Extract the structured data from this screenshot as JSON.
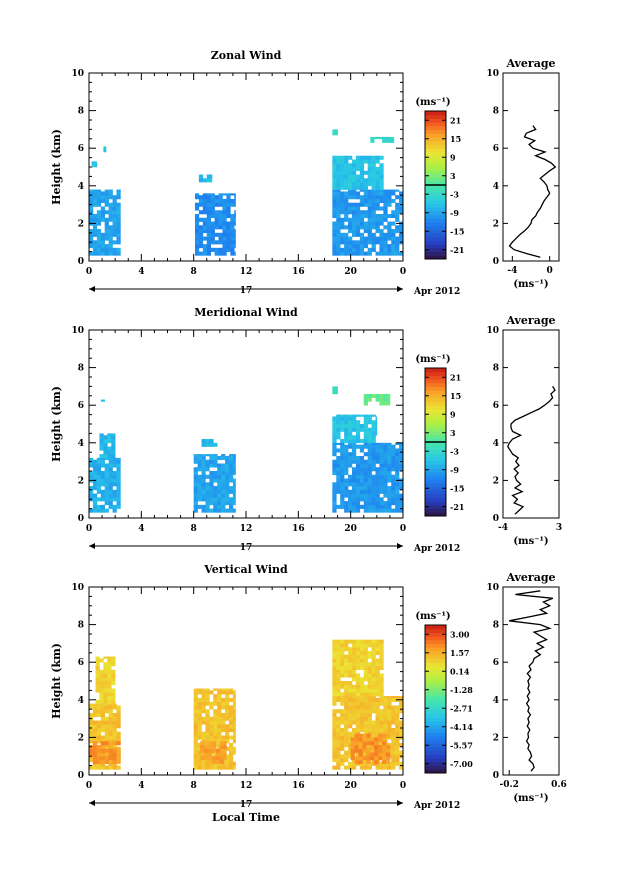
{
  "chart_data": [
    {
      "type": "heatmap",
      "title": "Zonal Wind",
      "ylabel": "Height (km)",
      "xlim": [
        0,
        24
      ],
      "ylim": [
        0,
        10
      ],
      "xticks": [
        "0",
        "4",
        "8",
        "12",
        "16",
        "20",
        "0"
      ],
      "yticks": [
        "0",
        "2",
        "4",
        "6",
        "8",
        "10"
      ],
      "day_label": "17",
      "date_label": "Apr 2012",
      "unit_label": "(ms⁻¹)",
      "colorbar": {
        "ticks": [
          "21",
          "15",
          "9",
          "3",
          "-3",
          "-9",
          "-15",
          "-21"
        ],
        "min": -24,
        "max": 24,
        "line_value": 0
      },
      "blocks": [
        {
          "x0": 0,
          "x1": 2.4,
          "y0": 0.3,
          "y1": 3.8,
          "value": -9
        },
        {
          "x0": 1.1,
          "x1": 1.3,
          "y0": 5.8,
          "y1": 6.1,
          "value": -6
        },
        {
          "x0": 0.2,
          "x1": 0.6,
          "y0": 5.0,
          "y1": 5.3,
          "value": -6
        },
        {
          "x0": 8.1,
          "x1": 11.2,
          "y0": 0.3,
          "y1": 3.6,
          "value": -11
        },
        {
          "x0": 8.4,
          "x1": 9.4,
          "y0": 4.2,
          "y1": 4.6,
          "value": -7
        },
        {
          "x0": 18.6,
          "x1": 24,
          "y0": 0.3,
          "y1": 3.8,
          "value": -10
        },
        {
          "x0": 18.6,
          "x1": 22.5,
          "y0": 3.8,
          "y1": 5.6,
          "value": -6
        },
        {
          "x0": 21.5,
          "x1": 23.3,
          "y0": 6.3,
          "y1": 6.6,
          "value": -3
        },
        {
          "x0": 18.6,
          "x1": 19.0,
          "y0": 6.7,
          "y1": 7.0,
          "value": -3
        }
      ],
      "average": {
        "title": "Average",
        "xlim": [
          -5,
          1
        ],
        "xticks": [
          "-4",
          "0"
        ],
        "xtick_values": [
          -4,
          0
        ],
        "xlabel": "(ms⁻¹)",
        "y": [
          0.2,
          0.4,
          0.6,
          0.8,
          1.0,
          1.2,
          1.4,
          1.6,
          1.8,
          2.0,
          2.2,
          2.4,
          2.6,
          2.8,
          3.0,
          3.2,
          3.4,
          3.6,
          3.8,
          4.0,
          4.2,
          4.4,
          4.6,
          4.8,
          5.0,
          5.2,
          5.4,
          5.6,
          5.8,
          6.0,
          6.2,
          6.4,
          6.6,
          6.8,
          7.0,
          7.2
        ],
        "x": [
          -1.0,
          -2.5,
          -3.8,
          -4.3,
          -4.0,
          -3.6,
          -3.2,
          -2.7,
          -2.3,
          -2.0,
          -1.9,
          -1.5,
          -1.3,
          -1.0,
          -0.8,
          -0.6,
          -0.3,
          0.0,
          -0.2,
          -0.3,
          -0.6,
          -1.0,
          -0.5,
          0.0,
          0.6,
          0.2,
          -0.5,
          -1.5,
          -0.5,
          -1.8,
          -2.2,
          -1.6,
          -2.7,
          -2.5,
          -1.5,
          -1.8
        ]
      }
    },
    {
      "type": "heatmap",
      "title": "Meridional Wind",
      "ylabel": "Height (km)",
      "xlim": [
        0,
        24
      ],
      "ylim": [
        0,
        10
      ],
      "xticks": [
        "0",
        "4",
        "8",
        "12",
        "16",
        "20",
        "0"
      ],
      "yticks": [
        "0",
        "2",
        "4",
        "6",
        "8",
        "10"
      ],
      "day_label": "17",
      "date_label": "Apr 2012",
      "unit_label": "(ms⁻¹)",
      "colorbar": {
        "ticks": [
          "21",
          "15",
          "9",
          "3",
          "-3",
          "-9",
          "-15",
          "-21"
        ],
        "min": -24,
        "max": 24,
        "line_value": 0
      },
      "blocks": [
        {
          "x0": 0,
          "x1": 2.4,
          "y0": 0.3,
          "y1": 3.2,
          "value": -8
        },
        {
          "x0": 0.8,
          "x1": 2.0,
          "y0": 3.2,
          "y1": 4.5,
          "value": -7
        },
        {
          "x0": 0.9,
          "x1": 1.2,
          "y0": 6.0,
          "y1": 6.3,
          "value": -6
        },
        {
          "x0": 8.0,
          "x1": 11.2,
          "y0": 0.3,
          "y1": 3.4,
          "value": -9
        },
        {
          "x0": 8.6,
          "x1": 9.8,
          "y0": 3.8,
          "y1": 4.2,
          "value": -7
        },
        {
          "x0": 18.6,
          "x1": 24,
          "y0": 0.3,
          "y1": 4.0,
          "value": -10
        },
        {
          "x0": 18.6,
          "x1": 22.0,
          "y0": 4.0,
          "y1": 5.5,
          "value": -6
        },
        {
          "x0": 21.0,
          "x1": 23.0,
          "y0": 6.0,
          "y1": 6.6,
          "value": 2
        },
        {
          "x0": 18.6,
          "x1": 19.0,
          "y0": 6.6,
          "y1": 7.0,
          "value": -3
        }
      ],
      "average": {
        "title": "Average",
        "xlim": [
          -4,
          3
        ],
        "xticks": [
          "-4",
          "3"
        ],
        "xtick_values": [
          -4,
          3
        ],
        "xlabel": "(ms⁻¹)",
        "y": [
          0.2,
          0.4,
          0.6,
          0.8,
          1.0,
          1.2,
          1.4,
          1.6,
          1.8,
          2.0,
          2.2,
          2.4,
          2.6,
          2.8,
          3.0,
          3.2,
          3.4,
          3.6,
          3.8,
          4.0,
          4.2,
          4.4,
          4.6,
          4.8,
          5.0,
          5.2,
          5.4,
          5.6,
          5.8,
          6.0,
          6.2,
          6.4,
          6.6,
          6.8,
          7.0
        ],
        "x": [
          -2.5,
          -2.0,
          -1.5,
          -2.6,
          -2.2,
          -2.8,
          -1.6,
          -2.5,
          -1.8,
          -2.3,
          -2.5,
          -2.1,
          -2.6,
          -2.0,
          -2.4,
          -2.1,
          -2.8,
          -3.1,
          -3.4,
          -3.2,
          -2.8,
          -1.8,
          -2.8,
          -3.0,
          -3.0,
          -2.5,
          -1.5,
          -0.5,
          0.5,
          1.2,
          1.8,
          2.2,
          2.0,
          2.5,
          2.2
        ]
      }
    },
    {
      "type": "heatmap",
      "title": "Vertical Wind",
      "ylabel": "Height (km)",
      "xlabel": "Local Time",
      "xlim": [
        0,
        24
      ],
      "ylim": [
        0,
        10
      ],
      "xticks": [
        "0",
        "4",
        "8",
        "12",
        "16",
        "20",
        "0"
      ],
      "yticks": [
        "0",
        "2",
        "4",
        "6",
        "8",
        "10"
      ],
      "day_label": "17",
      "date_label": "Apr 2012",
      "unit_label": "(ms⁻¹)",
      "colorbar": {
        "ticks": [
          "3.00",
          "1.57",
          "0.14",
          "-1.28",
          "-2.71",
          "-4.14",
          "-5.57",
          "-7.00"
        ],
        "min": -7.7,
        "max": 3.7
      },
      "blocks": [
        {
          "x0": 0,
          "x1": 2.4,
          "y0": 0.3,
          "y1": 3.8,
          "value": 1.2
        },
        {
          "x0": 0,
          "x1": 2.4,
          "y0": 0.6,
          "y1": 1.8,
          "value": 2.0
        },
        {
          "x0": 0.5,
          "x1": 2.0,
          "y0": 3.8,
          "y1": 6.3,
          "value": 0.9
        },
        {
          "x0": 8.0,
          "x1": 11.2,
          "y0": 0.3,
          "y1": 4.6,
          "value": 1.2
        },
        {
          "x0": 8.5,
          "x1": 10.5,
          "y0": 0.6,
          "y1": 1.8,
          "value": 1.8
        },
        {
          "x0": 18.6,
          "x1": 24,
          "y0": 0.3,
          "y1": 4.2,
          "value": 1.2
        },
        {
          "x0": 20.0,
          "x1": 23.0,
          "y0": 0.6,
          "y1": 2.2,
          "value": 2.0
        },
        {
          "x0": 18.6,
          "x1": 22.5,
          "y0": 4.2,
          "y1": 7.2,
          "value": 0.9
        }
      ],
      "average": {
        "title": "Average",
        "xlim": [
          -0.3,
          0.6
        ],
        "xticks": [
          "-0.2",
          "0.6"
        ],
        "xtick_values": [
          -0.2,
          0.6
        ],
        "xlabel": "(ms⁻¹)",
        "y": [
          0.2,
          0.4,
          0.6,
          0.8,
          1.0,
          1.2,
          1.4,
          1.6,
          1.8,
          2.0,
          2.2,
          2.4,
          2.6,
          2.8,
          3.0,
          3.2,
          3.4,
          3.6,
          3.8,
          4.0,
          4.2,
          4.4,
          4.6,
          4.8,
          5.0,
          5.2,
          5.4,
          5.6,
          5.8,
          6.0,
          6.2,
          6.4,
          6.6,
          6.8,
          7.0,
          7.2,
          7.4,
          7.6,
          7.8,
          8.0,
          8.2,
          8.4,
          8.6,
          8.8,
          9.0,
          9.2,
          9.4,
          9.6,
          9.8
        ],
        "x": [
          0.15,
          0.2,
          0.18,
          0.12,
          0.16,
          0.14,
          0.1,
          0.12,
          0.08,
          0.11,
          0.1,
          0.13,
          0.09,
          0.12,
          0.1,
          0.14,
          0.1,
          0.12,
          0.08,
          0.12,
          0.09,
          0.13,
          0.1,
          0.12,
          0.1,
          0.14,
          0.09,
          0.15,
          0.12,
          0.18,
          0.2,
          0.3,
          0.22,
          0.35,
          0.25,
          0.4,
          0.3,
          0.2,
          0.45,
          0.3,
          -0.2,
          0.1,
          0.4,
          0.3,
          0.45,
          0.35,
          0.5,
          -0.1,
          0.3
        ]
      }
    }
  ]
}
